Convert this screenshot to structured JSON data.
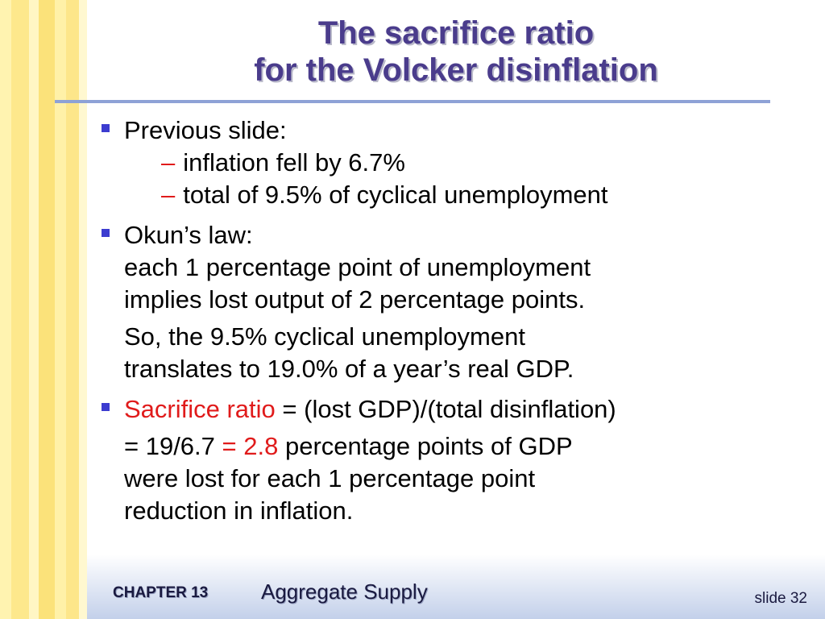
{
  "title": {
    "line1": "The sacrifice ratio",
    "line2": "for the Volcker disinflation"
  },
  "bullets": {
    "b1": {
      "label": "Previous slide:",
      "sub1": "inflation fell by 6.7%",
      "sub2": "total of 9.5% of cyclical unemployment"
    },
    "b2": {
      "label": "Okun’s law:",
      "line1": "each 1 percentage point of unemployment",
      "line2": "implies lost output of 2 percentage points.",
      "line3": "So, the 9.5% cyclical unemployment",
      "line4": "translates to 19.0% of a year’s real GDP."
    },
    "b3": {
      "term": "Sacrifice ratio",
      "def": " = (lost GDP)/(total disinflation)",
      "calc_prefix": "= 19/6.7 ",
      "calc_result": "= 2.8",
      "calc_suffix": " percentage points of GDP",
      "line3": "were lost for each 1 percentage point",
      "line4": "reduction in inflation."
    }
  },
  "footer": {
    "chapter": "CHAPTER 13",
    "subject": "Aggregate Supply",
    "slide": "slide 32"
  },
  "colors": {
    "title": "#4a3c8c",
    "bullet": "#3c3cd0",
    "highlight": "#e01b1b",
    "rule": "#8ea2d6"
  },
  "icons": {
    "bullet": "square-bullet-icon",
    "dash": "dash-bullet-icon"
  }
}
